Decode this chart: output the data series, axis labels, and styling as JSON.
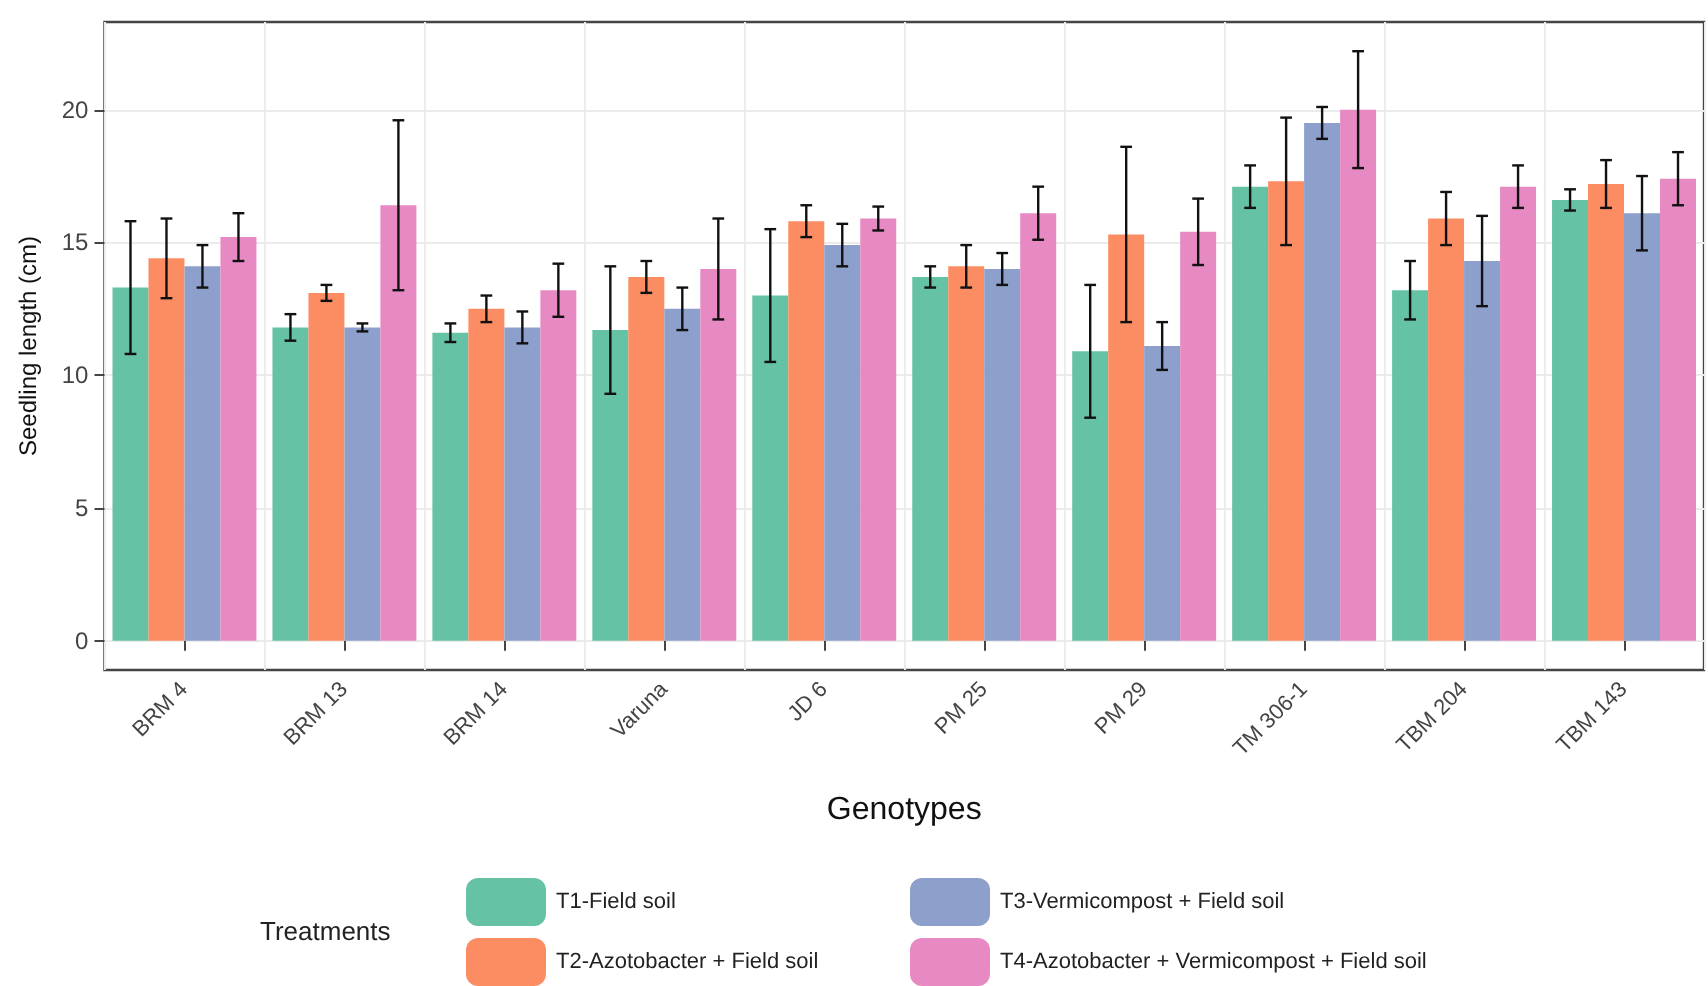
{
  "chart_data": {
    "type": "bar",
    "xlabel": "Genotypes",
    "ylabel": "Seedling length (cm)",
    "legend_title": "Treatments",
    "categories": [
      "BRM 4",
      "BRM 13",
      "BRM 14",
      "Varuna",
      "JD 6",
      "PM 25",
      "PM 29",
      "TM 306-1",
      "TBM 204",
      "TBM 143"
    ],
    "series": [
      {
        "name": "T1-Field soil",
        "color": "#66c2a5",
        "values": [
          13.3,
          11.8,
          11.6,
          11.7,
          13.0,
          13.7,
          10.9,
          17.1,
          13.2,
          16.6
        ],
        "errors": [
          2.5,
          0.5,
          0.35,
          2.4,
          2.5,
          0.4,
          2.5,
          0.8,
          1.1,
          0.4
        ]
      },
      {
        "name": "T2-Azotobacter + Field soil",
        "color": "#fc8d62",
        "values": [
          14.4,
          13.1,
          12.5,
          13.7,
          15.8,
          14.1,
          15.3,
          17.3,
          15.9,
          17.2
        ],
        "errors": [
          1.5,
          0.3,
          0.5,
          0.6,
          0.6,
          0.8,
          3.3,
          2.4,
          1.0,
          0.9
        ]
      },
      {
        "name": "T3-Vermicompost + Field soil",
        "color": "#8da0cb",
        "values": [
          14.1,
          11.8,
          11.8,
          12.5,
          14.9,
          14.0,
          11.1,
          19.5,
          14.3,
          16.1
        ],
        "errors": [
          0.8,
          0.15,
          0.6,
          0.8,
          0.8,
          0.6,
          0.9,
          0.6,
          1.7,
          1.4
        ]
      },
      {
        "name": "T4-Azotobacter + Vermicompost + Field soil",
        "color": "#e78ac3",
        "values": [
          15.2,
          16.4,
          13.2,
          14.0,
          15.9,
          16.1,
          15.4,
          20.0,
          17.1,
          17.4
        ],
        "errors": [
          0.9,
          3.2,
          1.0,
          1.9,
          0.45,
          1.0,
          1.25,
          2.2,
          0.8,
          1.0
        ]
      }
    ],
    "ylim": [
      -1.1,
      23.3
    ],
    "yticks": [
      0,
      5,
      10,
      15,
      20
    ],
    "grid": true,
    "legend": "bottom"
  }
}
